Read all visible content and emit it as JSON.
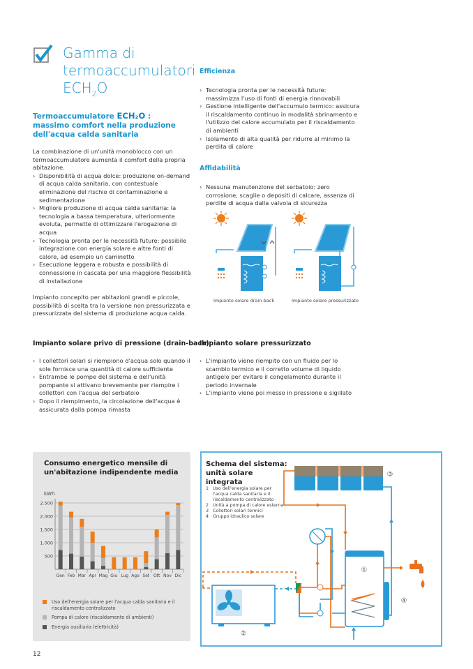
{
  "header": {
    "title_line1": "Gamma di",
    "title_line2": "termoaccumulatori",
    "title_line3": "ECH",
    "title_sub": "2",
    "title_end": "O",
    "checkbox_icon": "checkmark-box-icon"
  },
  "intro": {
    "subtitle_pre": "Termoaccumulatore ",
    "subtitle_logo": "ECH₂O",
    "subtitle_post": " :",
    "subtitle_rest": "massimo comfort nella produzione dell'acqua calda sanitaria",
    "paragraph": "La combinazione di un'unità monoblocco con un termoaccumulatore aumenta il comfort della propria abitazione.",
    "bullets": [
      "Disponibilità di acqua dolce: produzione on-demand di acqua calda sanitaria, con contestuale eliminazione del rischio di contaminazione e sedimentazione",
      "Migliore produzione di acqua calda sanitaria: la tecnologia a bassa temperatura, ulteriormente evoluta, permette di ottimizzare l'erogazione di acqua",
      "Tecnologia pronta per le necessità future: possibile integrazione con energia solare e altre fonti di calore, ad esempio un caminetto",
      "Esecuzione leggera e robusta e possibilità di connessione in cascata per una maggiore flessibilità di installazione"
    ],
    "closing": "Impianto concepito per abitazioni grandi e piccole, possibilità di scelta tra la versione non pressurizzata e pressurizzata del sistema di produzione acqua calda."
  },
  "efficienza": {
    "heading": "Efficienza",
    "bullets": [
      "Tecnologia pronta per le necessità future: massimizza l'uso di fonti di energia rinnovabili",
      "Gestione intelligente dell'accumulo termico: assicura il riscaldamento continuo in modalità sbrinamento e l'utilizzo del calore accumulato per il riscaldamento di ambienti",
      "Isolamento di alta qualità per ridurre al minimo la perdita di calore"
    ]
  },
  "affidabilita": {
    "heading": "Affidabilità",
    "bullets": [
      "Nessuna manutenzione del serbatoio: zero corrosione, scaglie o depositi di calcare, assenza di perdite di acqua dalla valvola di sicurezza"
    ]
  },
  "illustrations": {
    "drainback_caption": "Impianto solare drain-back",
    "pressurized_caption": "Impianto solare pressurizzato"
  },
  "drainback": {
    "heading": "Impianto solare privo di pressione (drain-back)",
    "bullets": [
      "I collettori solari si riempiono d'acqua solo quando il sole fornisce una quantità di calore sufficiente",
      "Entrambe le pompe del sistema e dell'unità pompante si attivano brevemente per riempire i collettori con l'acqua del serbatoio",
      "Dopo il riempimento, la circolazione dell'acqua è assicurata dalla pompa rimasta"
    ]
  },
  "pressurized": {
    "heading": "Impianto solare pressurizzato",
    "bullets": [
      "L'impianto viene riempito con un fluido per lo scambio termico e il corretto volume di liquido antigelo per evitare il congelamento durante il periodo invernale",
      "L'impianto viene poi messo in pressione e sigillato"
    ]
  },
  "chart_data": {
    "type": "bar",
    "stacked": true,
    "title": "Consumo energetico mensile di un'abitazione indipendente media",
    "ylabel": "kWh",
    "ylim": [
      0,
      2500
    ],
    "yticks": [
      500,
      1000,
      1500,
      2000,
      2500
    ],
    "ytick_labels": [
      "500",
      "1.000",
      "1.500",
      "2.000",
      "2.500"
    ],
    "grid": true,
    "categories": [
      "Gen",
      "Feb",
      "Mar",
      "Apr",
      "Mag",
      "Giu",
      "Lug",
      "Ago",
      "Set",
      "Ott",
      "Nov",
      "Dic"
    ],
    "series": [
      {
        "name": "Energia ausiliaria (elettricità)",
        "color": "#555555",
        "values": [
          730,
          590,
          480,
          300,
          130,
          0,
          0,
          0,
          80,
          380,
          610,
          730
        ]
      },
      {
        "name": "Pompa di calore (riscaldamento di ambienti)",
        "color": "#b4b4b4",
        "values": [
          1670,
          1360,
          1120,
          700,
          290,
          0,
          0,
          0,
          150,
          820,
          1440,
          1690
        ]
      },
      {
        "name": "Uso dell'energia solare per l'acqua calda sanitaria e il riscaldamento centralizzato",
        "color": "#ee7d1a",
        "values": [
          150,
          220,
          300,
          420,
          460,
          450,
          450,
          450,
          450,
          300,
          120,
          80
        ]
      }
    ],
    "legend_order": [
      2,
      1,
      0
    ],
    "legend": "bottom"
  },
  "schema": {
    "title": "Schema del sistema: unità solare integrata",
    "items": [
      {
        "n": "1",
        "text": "Uso dell'energia solare per l'acqua calda sanitaria e il riscaldamento centralizzato"
      },
      {
        "n": "2",
        "text": "Unità a pompa di calore esterna"
      },
      {
        "n": "3",
        "text": "Collettori solari termici"
      },
      {
        "n": "4",
        "text": "Gruppo idraulico solare"
      }
    ],
    "labels": [
      "①",
      "②",
      "③",
      "④"
    ],
    "colors": {
      "hot": "#e8711c",
      "cold": "#2a9ad6"
    }
  },
  "footer": {
    "page_number": "12"
  }
}
